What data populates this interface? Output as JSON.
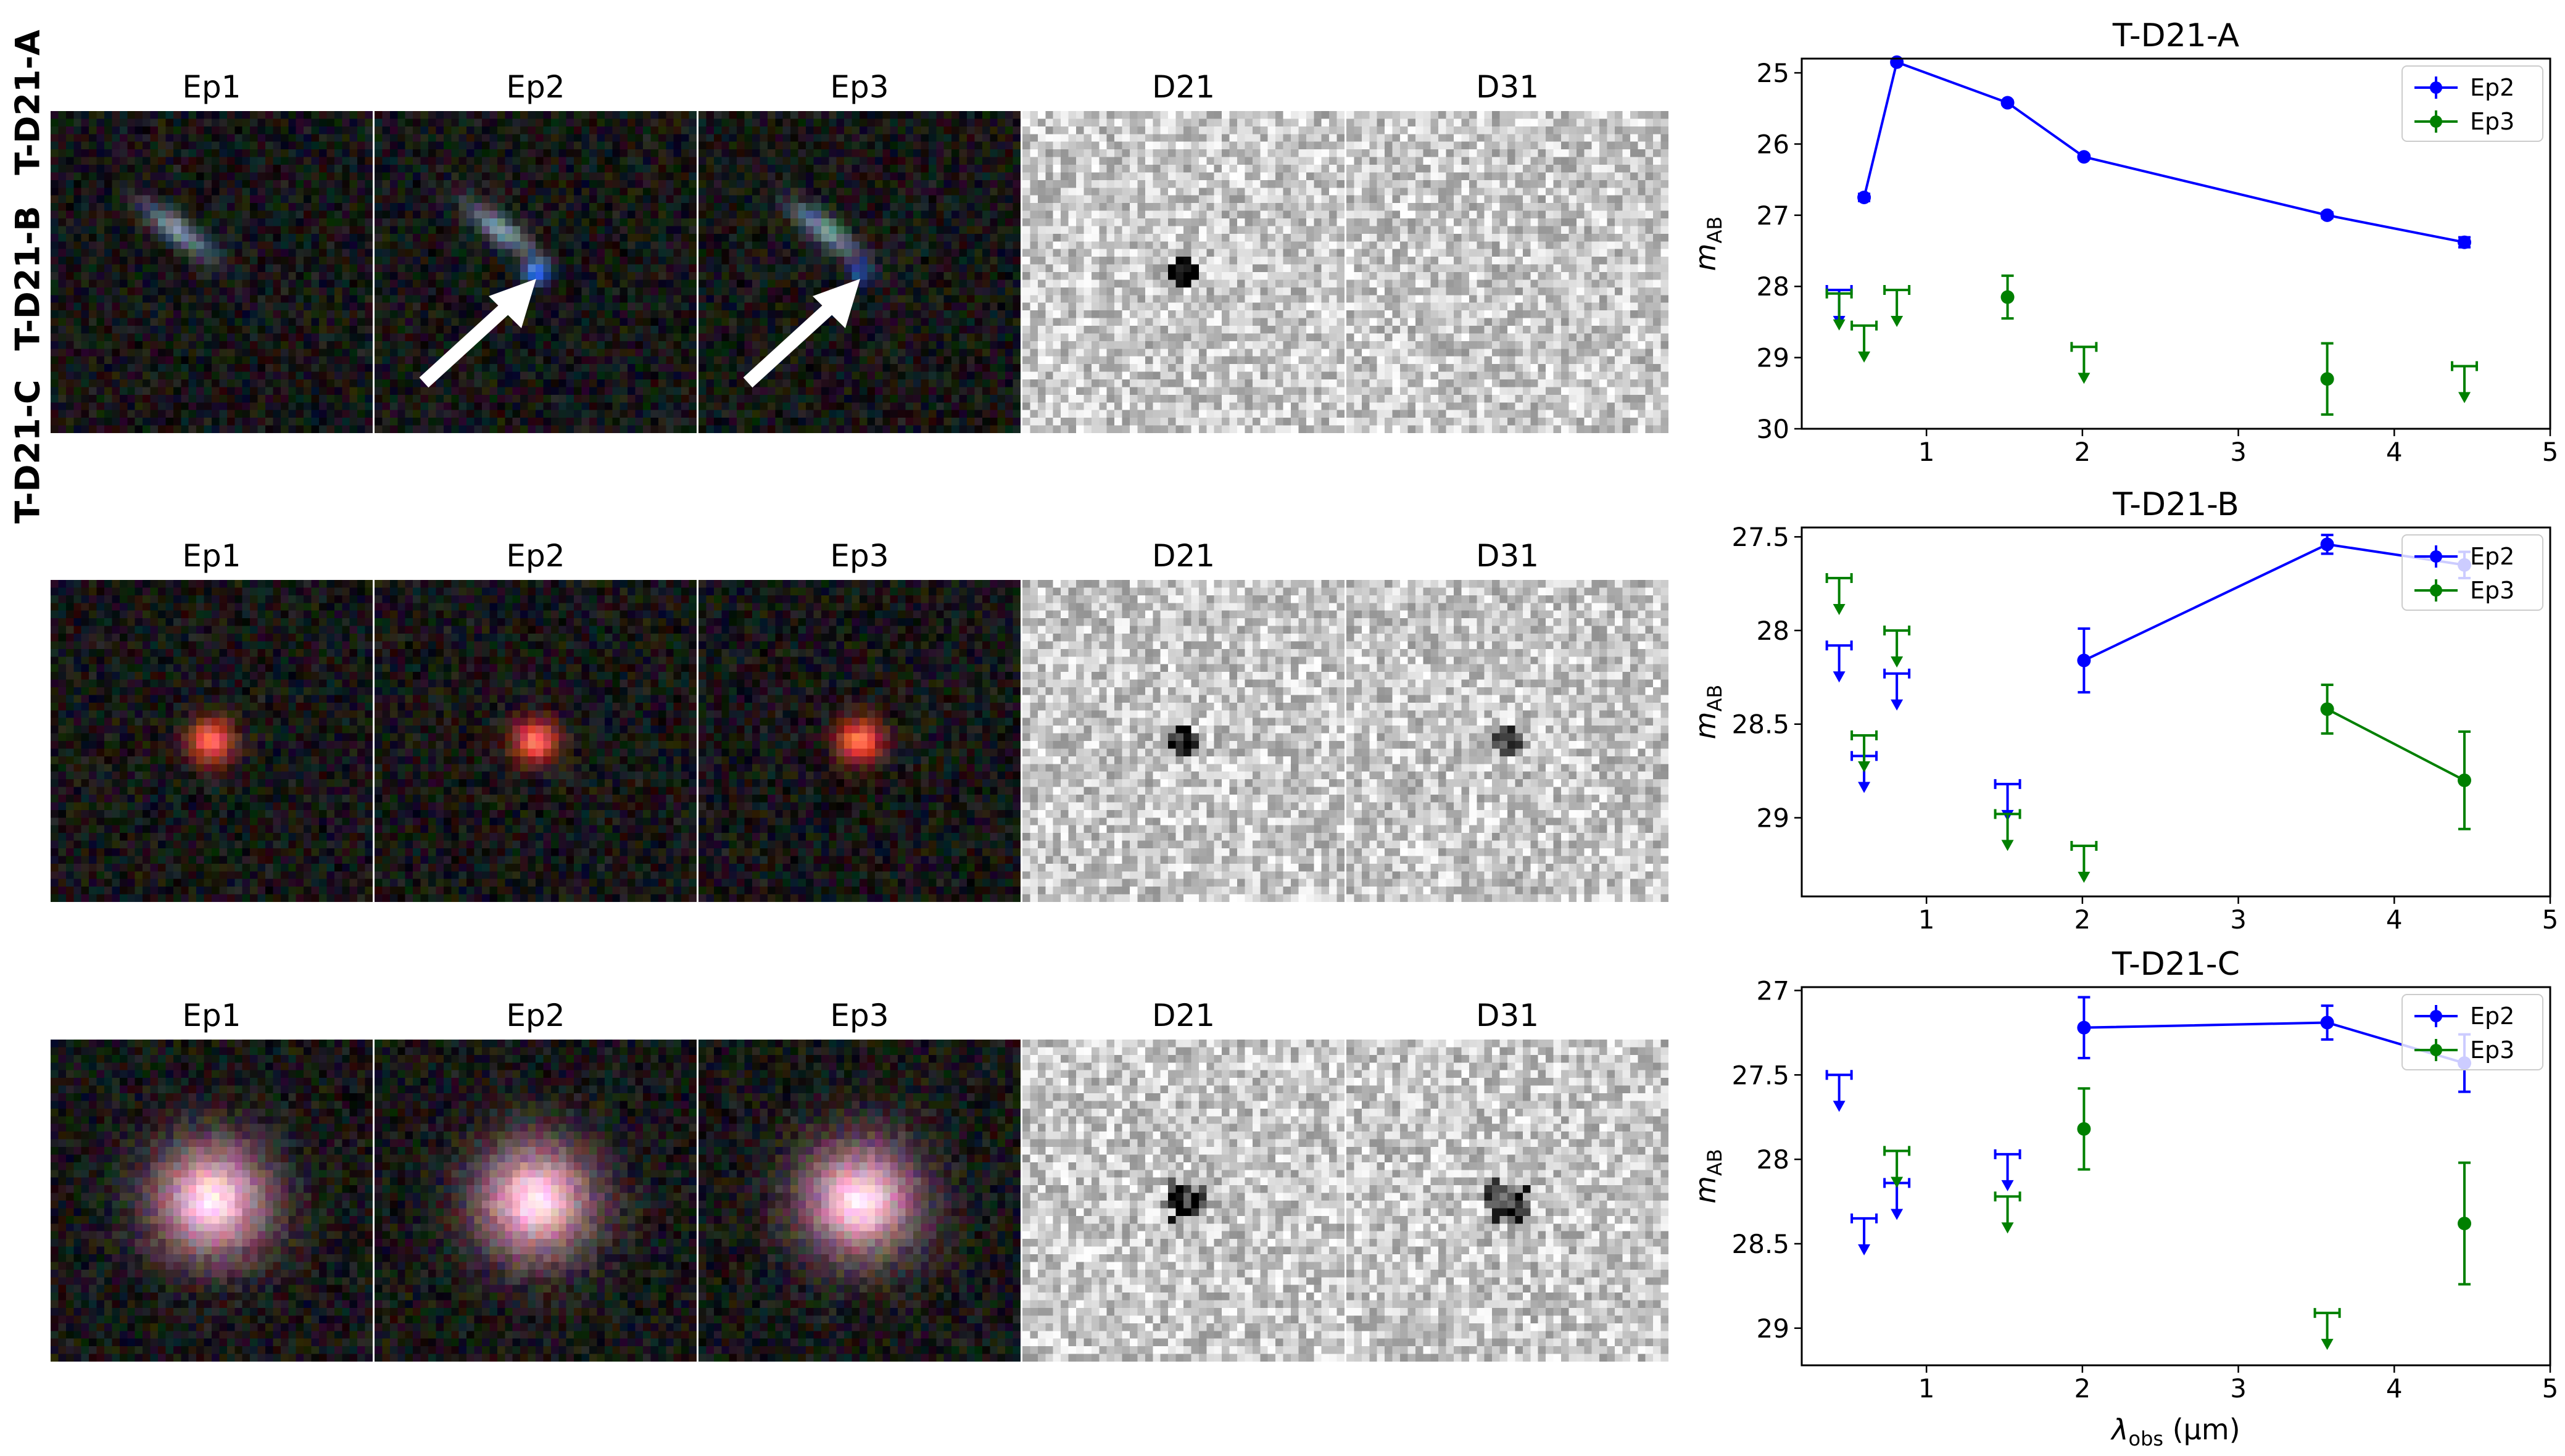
{
  "rows": [
    {
      "label": "T-D21-A",
      "thumbnails": [
        "Ep1",
        "Ep2",
        "Ep3",
        "D21",
        "D31"
      ],
      "arrows_on": [
        "Ep2",
        "Ep3"
      ],
      "source_color": "#2f5fd0",
      "host_color": "#6c8aa0"
    },
    {
      "label": "T-D21-B",
      "thumbnails": [
        "Ep1",
        "Ep2",
        "Ep3",
        "D21",
        "D31"
      ],
      "arrows_on": [],
      "source_color": "#ff2a1a",
      "host_color": "#ff2a1a"
    },
    {
      "label": "T-D21-C",
      "thumbnails": [
        "Ep1",
        "Ep2",
        "Ep3",
        "D21",
        "D31"
      ],
      "arrows_on": [],
      "source_color": "#d8a0b8",
      "host_color": "#d8a0b8"
    }
  ],
  "colors": {
    "Ep2": "#0000ff",
    "Ep3": "#008000"
  },
  "chart_data": [
    {
      "type": "line",
      "title": "T-D21-A",
      "xlabel": "",
      "ylabel": "m_AB",
      "xlim": [
        0.2,
        5.0
      ],
      "ylim": [
        30.0,
        24.8
      ],
      "y_inverted": true,
      "xticks": [
        1,
        2,
        3,
        4,
        5
      ],
      "yticks": [
        25,
        26,
        27,
        28,
        29,
        30
      ],
      "legend": {
        "position": "top-right",
        "entries": [
          "Ep2",
          "Ep3"
        ]
      },
      "series": [
        {
          "name": "Ep2",
          "color": "#0000ff",
          "points": [
            {
              "x": 0.44,
              "y": 28.05,
              "upper_limit": true
            },
            {
              "x": 0.6,
              "y": 26.75,
              "err": 0.05
            },
            {
              "x": 0.81,
              "y": 24.85,
              "err": 0.03
            },
            {
              "x": 1.52,
              "y": 25.42,
              "err": 0.03
            },
            {
              "x": 2.01,
              "y": 26.18,
              "err": 0.03
            },
            {
              "x": 3.57,
              "y": 27.0,
              "err": 0.04
            },
            {
              "x": 4.45,
              "y": 27.38,
              "err": 0.07
            }
          ],
          "connected_x": [
            0.6,
            0.81,
            1.52,
            2.01,
            3.57,
            4.45
          ]
        },
        {
          "name": "Ep3",
          "color": "#008000",
          "points": [
            {
              "x": 0.44,
              "y": 28.1,
              "upper_limit": true
            },
            {
              "x": 0.6,
              "y": 28.55,
              "upper_limit": true
            },
            {
              "x": 0.81,
              "y": 28.05,
              "upper_limit": true
            },
            {
              "x": 1.52,
              "y": 28.15,
              "err": 0.3
            },
            {
              "x": 2.01,
              "y": 28.85,
              "upper_limit": true
            },
            {
              "x": 3.57,
              "y": 29.3,
              "err": 0.5
            },
            {
              "x": 4.45,
              "y": 29.12,
              "upper_limit": true
            }
          ],
          "connected_x": []
        }
      ]
    },
    {
      "type": "line",
      "title": "T-D21-B",
      "xlabel": "",
      "ylabel": "m_AB",
      "xlim": [
        0.2,
        5.0
      ],
      "ylim": [
        29.42,
        27.45
      ],
      "y_inverted": true,
      "xticks": [
        1,
        2,
        3,
        4,
        5
      ],
      "yticks": [
        27.5,
        28.0,
        28.5,
        29.0
      ],
      "legend": {
        "position": "top-right",
        "entries": [
          "Ep2",
          "Ep3"
        ]
      },
      "series": [
        {
          "name": "Ep2",
          "color": "#0000ff",
          "points": [
            {
              "x": 0.44,
              "y": 28.08,
              "upper_limit": true
            },
            {
              "x": 0.6,
              "y": 28.67,
              "upper_limit": true
            },
            {
              "x": 0.81,
              "y": 28.23,
              "upper_limit": true
            },
            {
              "x": 1.52,
              "y": 28.82,
              "upper_limit": true
            },
            {
              "x": 2.01,
              "y": 28.16,
              "err": 0.17
            },
            {
              "x": 3.57,
              "y": 27.54,
              "err": 0.05
            },
            {
              "x": 4.45,
              "y": 27.65,
              "err": 0.07
            }
          ],
          "connected_x": [
            2.01,
            3.57,
            4.45
          ]
        },
        {
          "name": "Ep3",
          "color": "#008000",
          "points": [
            {
              "x": 0.44,
              "y": 27.72,
              "upper_limit": true
            },
            {
              "x": 0.6,
              "y": 28.56,
              "upper_limit": true
            },
            {
              "x": 0.81,
              "y": 28.0,
              "upper_limit": true
            },
            {
              "x": 1.52,
              "y": 28.98,
              "upper_limit": true
            },
            {
              "x": 2.01,
              "y": 29.15,
              "upper_limit": true
            },
            {
              "x": 3.57,
              "y": 28.42,
              "err": 0.13
            },
            {
              "x": 4.45,
              "y": 28.8,
              "err": 0.26
            }
          ],
          "connected_x": [
            3.57,
            4.45
          ]
        }
      ]
    },
    {
      "type": "line",
      "title": "T-D21-C",
      "xlabel": "λobs (µm)",
      "ylabel": "m_AB",
      "xlim": [
        0.2,
        5.0
      ],
      "ylim": [
        29.22,
        26.98
      ],
      "y_inverted": true,
      "xticks": [
        1,
        2,
        3,
        4,
        5
      ],
      "yticks": [
        27.0,
        27.5,
        28.0,
        28.5,
        29.0
      ],
      "legend": {
        "position": "top-right",
        "entries": [
          "Ep2",
          "Ep3"
        ]
      },
      "series": [
        {
          "name": "Ep2",
          "color": "#0000ff",
          "points": [
            {
              "x": 0.44,
              "y": 27.5,
              "upper_limit": true
            },
            {
              "x": 0.6,
              "y": 28.35,
              "upper_limit": true
            },
            {
              "x": 0.81,
              "y": 28.14,
              "upper_limit": true
            },
            {
              "x": 1.52,
              "y": 27.97,
              "upper_limit": true
            },
            {
              "x": 2.01,
              "y": 27.22,
              "err": 0.18
            },
            {
              "x": 3.57,
              "y": 27.19,
              "err": 0.1
            },
            {
              "x": 4.45,
              "y": 27.43,
              "err": 0.17
            }
          ],
          "connected_x": [
            2.01,
            3.57,
            4.45
          ]
        },
        {
          "name": "Ep3",
          "color": "#008000",
          "points": [
            {
              "x": 0.81,
              "y": 27.95,
              "upper_limit": true
            },
            {
              "x": 1.52,
              "y": 28.22,
              "upper_limit": true
            },
            {
              "x": 2.01,
              "y": 27.82,
              "err": 0.24
            },
            {
              "x": 3.57,
              "y": 28.91,
              "upper_limit": true
            },
            {
              "x": 4.45,
              "y": 28.38,
              "err": 0.36
            }
          ],
          "connected_x": []
        }
      ]
    }
  ],
  "xlabel_html": {
    "symbol": "λ",
    "sub": "obs",
    "unit": " (µm)"
  },
  "ylabel_parts": {
    "symbol": "m",
    "sub": "AB"
  }
}
